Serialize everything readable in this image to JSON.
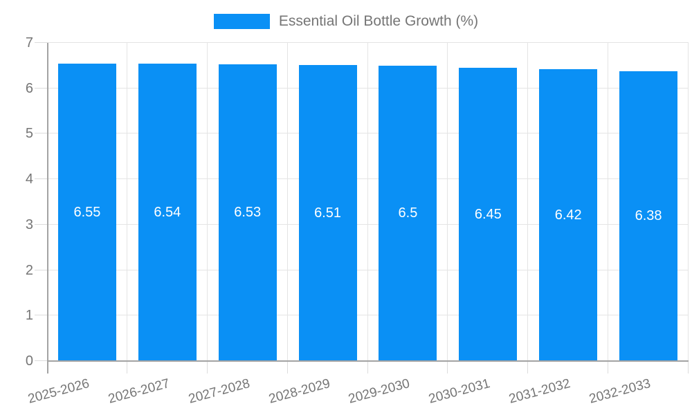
{
  "legend": {
    "position": "top"
  },
  "colors": {
    "background": "#FFFFFF",
    "bar": "#0A90F5",
    "bar_label_text": "#FFFFFF",
    "axis_line": "#A3A3A3",
    "gridline": "#E4E4E4",
    "tick": "#DCDCDC",
    "axis_text": "#757575",
    "legend_text": "#757575"
  },
  "chart_data": {
    "type": "bar",
    "title": "Essential Oil Bottle Growth (%)",
    "categories": [
      "2025-2026",
      "2026-2027",
      "2027-2028",
      "2028-2029",
      "2029-2030",
      "2030-2031",
      "2031-2032",
      "2032-2033"
    ],
    "values": [
      6.55,
      6.54,
      6.53,
      6.51,
      6.5,
      6.45,
      6.42,
      6.38
    ],
    "value_labels": [
      "6.55",
      "6.54",
      "6.53",
      "6.51",
      "6.5",
      "6.45",
      "6.42",
      "6.38"
    ],
    "xlabel": "",
    "ylabel": "",
    "ylim": [
      0,
      7
    ],
    "ytick_labels": [
      "0",
      "1",
      "2",
      "3",
      "4",
      "5",
      "6",
      "7"
    ],
    "grid": true,
    "legend_position": "top center",
    "value_label_position": "inside middle",
    "x_label_rotation_deg": -15
  }
}
